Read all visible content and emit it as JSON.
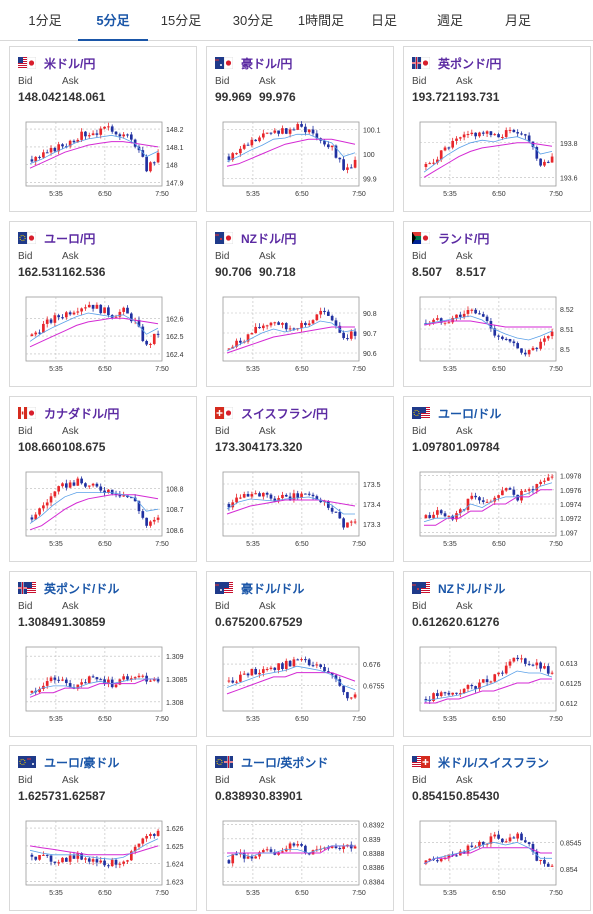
{
  "tabs": [
    {
      "label": "1分足",
      "active": false
    },
    {
      "label": "5分足",
      "active": true
    },
    {
      "label": "15分足",
      "active": false
    },
    {
      "label": "30分足",
      "active": false
    },
    {
      "label": "1時間足",
      "active": false
    },
    {
      "label": "日足",
      "active": false
    },
    {
      "label": "週足",
      "active": false
    },
    {
      "label": "月足",
      "active": false
    }
  ],
  "bid_label": "Bid",
  "ask_label": "Ask",
  "x_ticks": [
    "5:35",
    "6:50",
    "7:50"
  ],
  "colors": {
    "up": "#e8262b",
    "down": "#2030a0",
    "ma_line": "#d42ad4",
    "ma_short": "#5aa0e8",
    "tab_accent": "#1a56a8",
    "pair_text": "#5b2aa2"
  },
  "cards": [
    {
      "pair": "米ドル/円",
      "flags": [
        "us",
        "jp"
      ],
      "bid": "148.042",
      "ask": "148.061",
      "yticks": [
        "148.2",
        "148.1",
        "148",
        "147.9"
      ],
      "ylim": [
        147.88,
        148.24
      ],
      "trend": [
        148.03,
        148.05,
        148.09,
        148.12,
        148.16,
        148.18,
        148.19,
        148.2,
        148.17,
        148.12,
        147.98,
        148.05
      ],
      "ma": [
        147.98,
        148.01,
        148.04,
        148.07,
        148.09,
        148.11,
        148.12,
        148.13,
        148.13,
        148.12,
        148.11,
        148.1
      ]
    },
    {
      "pair": "豪ドル/円",
      "flags": [
        "au",
        "jp"
      ],
      "bid": "99.969",
      "ask": "99.976",
      "yticks": [
        "100.1",
        "100",
        "99.9"
      ],
      "ylim": [
        99.87,
        100.13
      ],
      "trend": [
        99.99,
        100.02,
        100.05,
        100.07,
        100.1,
        100.09,
        100.11,
        100.1,
        100.06,
        100.03,
        99.93,
        99.97
      ],
      "ma": [
        99.95,
        99.96,
        99.98,
        100.0,
        100.02,
        100.04,
        100.05,
        100.06,
        100.06,
        100.06,
        100.05,
        100.04
      ]
    },
    {
      "pair": "英ポンド/円",
      "flags": [
        "gb",
        "jp"
      ],
      "bid": "193.721",
      "ask": "193.731",
      "yticks": [
        "193.8",
        "193.6"
      ],
      "ylim": [
        193.55,
        193.92
      ],
      "trend": [
        193.66,
        193.72,
        193.78,
        193.82,
        193.85,
        193.86,
        193.83,
        193.86,
        193.87,
        193.82,
        193.68,
        193.72
      ],
      "ma": [
        193.6,
        193.64,
        193.68,
        193.72,
        193.75,
        193.77,
        193.78,
        193.79,
        193.8,
        193.8,
        193.79,
        193.78
      ]
    },
    {
      "pair": "ユーロ/円",
      "flags": [
        "eu",
        "jp"
      ],
      "bid": "162.531",
      "ask": "162.536",
      "yticks": [
        "162.6",
        "162.5",
        "162.4"
      ],
      "ylim": [
        162.36,
        162.72
      ],
      "trend": [
        162.5,
        162.56,
        162.6,
        162.63,
        162.66,
        162.68,
        162.65,
        162.62,
        162.64,
        162.58,
        162.44,
        162.52
      ],
      "ma": [
        162.44,
        162.47,
        162.5,
        162.53,
        162.56,
        162.58,
        162.59,
        162.6,
        162.6,
        162.59,
        162.58,
        162.57
      ]
    },
    {
      "pair": "NZドル/円",
      "flags": [
        "nz",
        "jp"
      ],
      "bid": "90.706",
      "ask": "90.718",
      "yticks": [
        "90.8",
        "90.7",
        "90.6"
      ],
      "ylim": [
        90.56,
        90.88
      ],
      "trend": [
        90.62,
        90.66,
        90.7,
        90.74,
        90.76,
        90.72,
        90.74,
        90.75,
        90.8,
        90.77,
        90.68,
        90.7
      ],
      "ma": [
        90.6,
        90.62,
        90.64,
        90.66,
        90.68,
        90.69,
        90.7,
        90.71,
        90.72,
        90.73,
        90.73,
        90.73
      ]
    },
    {
      "pair": "ランド/円",
      "flags": [
        "za",
        "jp"
      ],
      "bid": "8.507",
      "ask": "8.517",
      "yticks": [
        "8.52",
        "8.51",
        "8.5"
      ],
      "ylim": [
        8.494,
        8.526
      ],
      "trend": [
        8.513,
        8.514,
        8.515,
        8.517,
        8.519,
        8.516,
        8.508,
        8.504,
        8.5,
        8.498,
        8.502,
        8.507
      ],
      "ma": [
        8.512,
        8.513,
        8.514,
        8.514,
        8.514,
        8.513,
        8.512,
        8.511,
        8.511,
        8.511,
        8.511,
        8.511
      ]
    },
    {
      "pair": "カナダドル/円",
      "flags": [
        "ca",
        "jp"
      ],
      "bid": "108.660",
      "ask": "108.675",
      "yticks": [
        "108.8",
        "108.7",
        "108.6"
      ],
      "ylim": [
        108.57,
        108.88
      ],
      "trend": [
        108.66,
        108.72,
        108.78,
        108.82,
        108.83,
        108.81,
        108.8,
        108.79,
        108.77,
        108.74,
        108.62,
        108.65
      ],
      "ma": [
        108.6,
        108.62,
        108.66,
        108.7,
        108.73,
        108.75,
        108.76,
        108.77,
        108.77,
        108.77,
        108.76,
        108.75
      ]
    },
    {
      "pair": "スイスフラン/円",
      "flags": [
        "ch",
        "jp"
      ],
      "bid": "173.304",
      "ask": "173.320",
      "yticks": [
        "173.5",
        "173.4",
        "173.3"
      ],
      "ylim": [
        173.24,
        173.56
      ],
      "trend": [
        173.4,
        173.45,
        173.46,
        173.44,
        173.42,
        173.43,
        173.44,
        173.45,
        173.42,
        173.38,
        173.3,
        173.31
      ],
      "ma": [
        173.35,
        173.37,
        173.39,
        173.4,
        173.41,
        173.42,
        173.42,
        173.42,
        173.42,
        173.41,
        173.4,
        173.39
      ]
    },
    {
      "pair": "ユーロ/ドル",
      "flags": [
        "eu",
        "us"
      ],
      "bid": "1.09780",
      "ask": "1.09784",
      "yticks": [
        "1.0978",
        "1.0976",
        "1.0974",
        "1.0972",
        "1.097"
      ],
      "ylim": [
        1.09695,
        1.09785
      ],
      "trend": [
        1.0972,
        1.0973,
        1.0972,
        1.0973,
        1.0975,
        1.0974,
        1.0975,
        1.0976,
        1.0975,
        1.0976,
        1.0977,
        1.0978
      ],
      "ma": [
        1.0971,
        1.0971,
        1.0972,
        1.0972,
        1.0973,
        1.0973,
        1.0974,
        1.0974,
        1.0975,
        1.0975,
        1.0976,
        1.0976
      ]
    },
    {
      "pair": "英ポンド/ドル",
      "flags": [
        "gb",
        "us"
      ],
      "bid": "1.30849",
      "ask": "1.30859",
      "yticks": [
        "1.309",
        "1.3085",
        "1.308"
      ],
      "ylim": [
        1.3078,
        1.3092
      ],
      "trend": [
        1.3082,
        1.3084,
        1.3085,
        1.3084,
        1.3083,
        1.3085,
        1.3085,
        1.3084,
        1.3085,
        1.3086,
        1.3085,
        1.3085
      ],
      "ma": [
        1.3081,
        1.3082,
        1.3082,
        1.3083,
        1.3083,
        1.3083,
        1.3084,
        1.3084,
        1.3084,
        1.3084,
        1.3085,
        1.3085
      ]
    },
    {
      "pair": "豪ドル/ドル",
      "flags": [
        "au",
        "us"
      ],
      "bid": "0.67520",
      "ask": "0.67529",
      "yticks": [
        "0.676",
        "0.6755"
      ],
      "ylim": [
        0.6749,
        0.6764
      ],
      "trend": [
        0.6756,
        0.6757,
        0.6758,
        0.6759,
        0.6759,
        0.676,
        0.6761,
        0.676,
        0.6759,
        0.6757,
        0.6753,
        0.6752
      ],
      "ma": [
        0.6753,
        0.6754,
        0.6755,
        0.6756,
        0.6757,
        0.6757,
        0.6758,
        0.6758,
        0.6758,
        0.6758,
        0.6757,
        0.6756
      ]
    },
    {
      "pair": "NZドル/ドル",
      "flags": [
        "nz",
        "us"
      ],
      "bid": "0.61262",
      "ask": "0.61276",
      "yticks": [
        "0.613",
        "0.6125",
        "0.612"
      ],
      "ylim": [
        0.6118,
        0.6134
      ],
      "trend": [
        0.6121,
        0.6122,
        0.6122,
        0.6123,
        0.6124,
        0.6125,
        0.6127,
        0.6129,
        0.6131,
        0.613,
        0.6129,
        0.6127
      ],
      "ma": [
        0.612,
        0.612,
        0.6121,
        0.6121,
        0.6122,
        0.6123,
        0.6123,
        0.6124,
        0.6125,
        0.6125,
        0.6126,
        0.6126
      ]
    },
    {
      "pair": "ユーロ/豪ドル",
      "flags": [
        "eu",
        "au"
      ],
      "bid": "1.62573",
      "ask": "1.62587",
      "yticks": [
        "1.626",
        "1.625",
        "1.624",
        "1.623"
      ],
      "ylim": [
        1.6228,
        1.6264
      ],
      "trend": [
        1.6245,
        1.6243,
        1.6242,
        1.6243,
        1.6244,
        1.6243,
        1.6241,
        1.624,
        1.6242,
        1.6248,
        1.6254,
        1.6258
      ],
      "ma": [
        1.625,
        1.6249,
        1.6248,
        1.6247,
        1.6246,
        1.6245,
        1.6245,
        1.6245,
        1.6245,
        1.6246,
        1.6248,
        1.625
      ]
    },
    {
      "pair": "ユーロ/英ポンド",
      "flags": [
        "eu",
        "gb"
      ],
      "bid": "0.83893",
      "ask": "0.83901",
      "yticks": [
        "0.8392",
        "0.839",
        "0.8388",
        "0.8386",
        "0.8384"
      ],
      "ylim": [
        0.83835,
        0.83925
      ],
      "trend": [
        0.8387,
        0.8388,
        0.8387,
        0.8388,
        0.8388,
        0.8389,
        0.8389,
        0.8388,
        0.8389,
        0.8389,
        0.8389,
        0.8389
      ],
      "ma": [
        0.8388,
        0.8388,
        0.8388,
        0.8388,
        0.8388,
        0.8388,
        0.8388,
        0.8388,
        0.8388,
        0.8389,
        0.8389,
        0.8389
      ]
    },
    {
      "pair": "米ドル/スイスフラン",
      "flags": [
        "us",
        "ch"
      ],
      "bid": "0.85415",
      "ask": "0.85430",
      "yticks": [
        "0.8545",
        "0.854"
      ],
      "ylim": [
        0.8537,
        0.8549
      ],
      "trend": [
        0.8541,
        0.8542,
        0.8543,
        0.8543,
        0.8544,
        0.8545,
        0.8546,
        0.8545,
        0.8546,
        0.8544,
        0.8541,
        0.8541
      ],
      "ma": [
        0.8541,
        0.8542,
        0.8542,
        0.8543,
        0.8543,
        0.8544,
        0.8544,
        0.8544,
        0.8544,
        0.8544,
        0.8543,
        0.8543
      ]
    }
  ]
}
